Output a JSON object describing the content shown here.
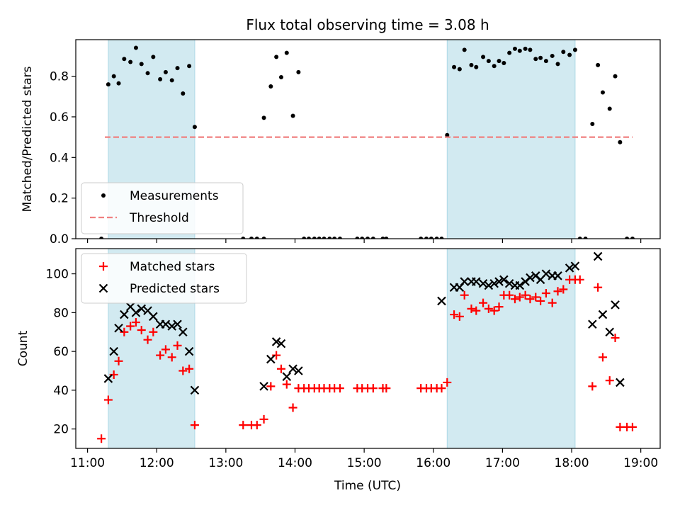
{
  "chart_data": {
    "type": "scatter",
    "title": "Flux total observing time = 3.08 h",
    "xlabel": "Time (UTC)",
    "x_tick_labels": [
      "11:00",
      "12:00",
      "13:00",
      "14:00",
      "15:00",
      "16:00",
      "17:00",
      "18:00",
      "19:00"
    ],
    "x_tick_hours": [
      11,
      12,
      13,
      14,
      15,
      16,
      17,
      18,
      19
    ],
    "xlim": [
      10.83,
      19.28
    ],
    "shaded_intervals": [
      [
        11.3,
        12.55
      ],
      [
        16.2,
        18.05
      ]
    ],
    "shade_color": "#add8e6",
    "panels": [
      {
        "ylabel": "Matched/Predicted stars",
        "ylim": [
          0,
          0.98
        ],
        "yticks": [
          0.0,
          0.2,
          0.4,
          0.6,
          0.8
        ],
        "ytick_labels": [
          "0.0",
          "0.2",
          "0.4",
          "0.6",
          "0.8"
        ],
        "legend": {
          "position": "lower-left",
          "entries": [
            "Measurements",
            "Threshold"
          ]
        },
        "series": [
          {
            "name": "Measurements",
            "marker": "dot",
            "color": "#000000",
            "points": [
              [
                11.2,
                0.0
              ],
              [
                11.3,
                0.76
              ],
              [
                11.38,
                0.8
              ],
              [
                11.45,
                0.765
              ],
              [
                11.53,
                0.885
              ],
              [
                11.62,
                0.87
              ],
              [
                11.7,
                0.94
              ],
              [
                11.78,
                0.86
              ],
              [
                11.87,
                0.815
              ],
              [
                11.95,
                0.895
              ],
              [
                12.05,
                0.785
              ],
              [
                12.13,
                0.82
              ],
              [
                12.22,
                0.78
              ],
              [
                12.3,
                0.84
              ],
              [
                12.38,
                0.715
              ],
              [
                12.47,
                0.85
              ],
              [
                12.55,
                0.55
              ],
              [
                13.25,
                0.0
              ],
              [
                13.37,
                0.0
              ],
              [
                13.45,
                0.0
              ],
              [
                13.55,
                0.0
              ],
              [
                13.55,
                0.595
              ],
              [
                13.65,
                0.75
              ],
              [
                13.73,
                0.895
              ],
              [
                13.8,
                0.795
              ],
              [
                13.88,
                0.915
              ],
              [
                13.97,
                0.605
              ],
              [
                14.05,
                0.82
              ],
              [
                14.13,
                0.0
              ],
              [
                14.2,
                0.0
              ],
              [
                14.28,
                0.0
              ],
              [
                14.35,
                0.0
              ],
              [
                14.42,
                0.0
              ],
              [
                14.5,
                0.0
              ],
              [
                14.57,
                0.0
              ],
              [
                14.65,
                0.0
              ],
              [
                14.9,
                0.0
              ],
              [
                14.97,
                0.0
              ],
              [
                15.05,
                0.0
              ],
              [
                15.13,
                0.0
              ],
              [
                15.27,
                0.0
              ],
              [
                15.32,
                0.0
              ],
              [
                15.82,
                0.0
              ],
              [
                15.9,
                0.0
              ],
              [
                15.97,
                0.0
              ],
              [
                16.05,
                0.0
              ],
              [
                16.12,
                0.0
              ],
              [
                16.2,
                0.51
              ],
              [
                16.3,
                0.845
              ],
              [
                16.38,
                0.835
              ],
              [
                16.45,
                0.93
              ],
              [
                16.55,
                0.855
              ],
              [
                16.62,
                0.845
              ],
              [
                16.72,
                0.895
              ],
              [
                16.8,
                0.875
              ],
              [
                16.88,
                0.85
              ],
              [
                16.95,
                0.875
              ],
              [
                17.02,
                0.865
              ],
              [
                17.1,
                0.915
              ],
              [
                17.18,
                0.935
              ],
              [
                17.25,
                0.925
              ],
              [
                17.33,
                0.935
              ],
              [
                17.4,
                0.93
              ],
              [
                17.48,
                0.885
              ],
              [
                17.55,
                0.89
              ],
              [
                17.63,
                0.875
              ],
              [
                17.72,
                0.9
              ],
              [
                17.8,
                0.86
              ],
              [
                17.88,
                0.92
              ],
              [
                17.97,
                0.905
              ],
              [
                18.05,
                0.93
              ],
              [
                18.12,
                0.0
              ],
              [
                18.2,
                0.0
              ],
              [
                18.3,
                0.565
              ],
              [
                18.38,
                0.855
              ],
              [
                18.45,
                0.72
              ],
              [
                18.55,
                0.64
              ],
              [
                18.63,
                0.8
              ],
              [
                18.7,
                0.475
              ],
              [
                18.8,
                0.0
              ],
              [
                18.88,
                0.0
              ]
            ]
          },
          {
            "name": "Threshold",
            "marker": "dashed-line",
            "color": "#f08080",
            "points": [
              [
                11.25,
                0.5
              ],
              [
                18.88,
                0.5
              ]
            ]
          }
        ]
      },
      {
        "ylabel": "Count",
        "ylim": [
          10,
          113
        ],
        "yticks": [
          20,
          40,
          60,
          80,
          100
        ],
        "ytick_labels": [
          "20",
          "40",
          "60",
          "80",
          "100"
        ],
        "legend": {
          "position": "top-left",
          "entries": [
            "Matched stars",
            "Predicted stars"
          ]
        },
        "series": [
          {
            "name": "Matched stars",
            "marker": "plus",
            "color": "#ff0000",
            "points": [
              [
                11.2,
                15
              ],
              [
                11.3,
                35
              ],
              [
                11.38,
                48
              ],
              [
                11.45,
                55
              ],
              [
                11.53,
                70
              ],
              [
                11.62,
                73
              ],
              [
                11.7,
                75
              ],
              [
                11.78,
                71
              ],
              [
                11.87,
                66
              ],
              [
                11.95,
                70
              ],
              [
                12.05,
                58
              ],
              [
                12.13,
                61
              ],
              [
                12.22,
                57
              ],
              [
                12.3,
                63
              ],
              [
                12.38,
                50
              ],
              [
                12.47,
                51
              ],
              [
                12.55,
                22
              ],
              [
                13.25,
                22
              ],
              [
                13.37,
                22
              ],
              [
                13.45,
                22
              ],
              [
                13.55,
                25
              ],
              [
                13.65,
                42
              ],
              [
                13.73,
                58
              ],
              [
                13.8,
                51
              ],
              [
                13.88,
                43
              ],
              [
                13.97,
                31
              ],
              [
                14.05,
                41
              ],
              [
                14.13,
                41
              ],
              [
                14.2,
                41
              ],
              [
                14.28,
                41
              ],
              [
                14.35,
                41
              ],
              [
                14.42,
                41
              ],
              [
                14.5,
                41
              ],
              [
                14.57,
                41
              ],
              [
                14.65,
                41
              ],
              [
                14.9,
                41
              ],
              [
                14.97,
                41
              ],
              [
                15.05,
                41
              ],
              [
                15.13,
                41
              ],
              [
                15.27,
                41
              ],
              [
                15.32,
                41
              ],
              [
                15.82,
                41
              ],
              [
                15.9,
                41
              ],
              [
                15.97,
                41
              ],
              [
                16.05,
                41
              ],
              [
                16.12,
                41
              ],
              [
                16.2,
                44
              ],
              [
                16.3,
                79
              ],
              [
                16.38,
                78
              ],
              [
                16.45,
                89
              ],
              [
                16.55,
                82
              ],
              [
                16.62,
                81
              ],
              [
                16.72,
                85
              ],
              [
                16.8,
                82
              ],
              [
                16.88,
                81
              ],
              [
                16.95,
                83
              ],
              [
                17.02,
                89
              ],
              [
                17.1,
                89
              ],
              [
                17.18,
                87
              ],
              [
                17.25,
                88
              ],
              [
                17.33,
                89
              ],
              [
                17.4,
                87
              ],
              [
                17.48,
                88
              ],
              [
                17.55,
                86
              ],
              [
                17.63,
                90
              ],
              [
                17.72,
                85
              ],
              [
                17.8,
                91
              ],
              [
                17.88,
                92
              ],
              [
                17.97,
                97
              ],
              [
                18.05,
                97
              ],
              [
                18.12,
                97
              ],
              [
                18.3,
                42
              ],
              [
                18.38,
                93
              ],
              [
                18.45,
                57
              ],
              [
                18.55,
                45
              ],
              [
                18.63,
                67
              ],
              [
                18.7,
                21
              ],
              [
                18.8,
                21
              ],
              [
                18.88,
                21
              ]
            ]
          },
          {
            "name": "Predicted stars",
            "marker": "x",
            "color": "#000000",
            "points": [
              [
                11.3,
                46
              ],
              [
                11.38,
                60
              ],
              [
                11.45,
                72
              ],
              [
                11.53,
                79
              ],
              [
                11.62,
                83
              ],
              [
                11.7,
                80
              ],
              [
                11.78,
                82
              ],
              [
                11.87,
                81
              ],
              [
                11.95,
                78
              ],
              [
                12.05,
                74
              ],
              [
                12.13,
                74
              ],
              [
                12.22,
                73
              ],
              [
                12.3,
                74
              ],
              [
                12.38,
                70
              ],
              [
                12.47,
                60
              ],
              [
                12.55,
                40
              ],
              [
                13.55,
                42
              ],
              [
                13.65,
                56
              ],
              [
                13.73,
                65
              ],
              [
                13.8,
                64
              ],
              [
                13.88,
                47
              ],
              [
                13.97,
                51
              ],
              [
                14.05,
                50
              ],
              [
                16.12,
                86
              ],
              [
                16.3,
                93
              ],
              [
                16.38,
                93
              ],
              [
                16.45,
                96
              ],
              [
                16.55,
                96
              ],
              [
                16.62,
                96
              ],
              [
                16.72,
                95
              ],
              [
                16.8,
                94
              ],
              [
                16.88,
                95
              ],
              [
                16.95,
                96
              ],
              [
                17.02,
                97
              ],
              [
                17.1,
                95
              ],
              [
                17.18,
                94
              ],
              [
                17.25,
                94
              ],
              [
                17.33,
                96
              ],
              [
                17.4,
                98
              ],
              [
                17.48,
                99
              ],
              [
                17.55,
                97
              ],
              [
                17.63,
                100
              ],
              [
                17.72,
                99
              ],
              [
                17.8,
                99
              ],
              [
                17.97,
                103
              ],
              [
                18.05,
                104
              ],
              [
                18.3,
                74
              ],
              [
                18.38,
                109
              ],
              [
                18.45,
                79
              ],
              [
                18.55,
                70
              ],
              [
                18.63,
                84
              ],
              [
                18.7,
                44
              ]
            ]
          }
        ]
      }
    ]
  }
}
